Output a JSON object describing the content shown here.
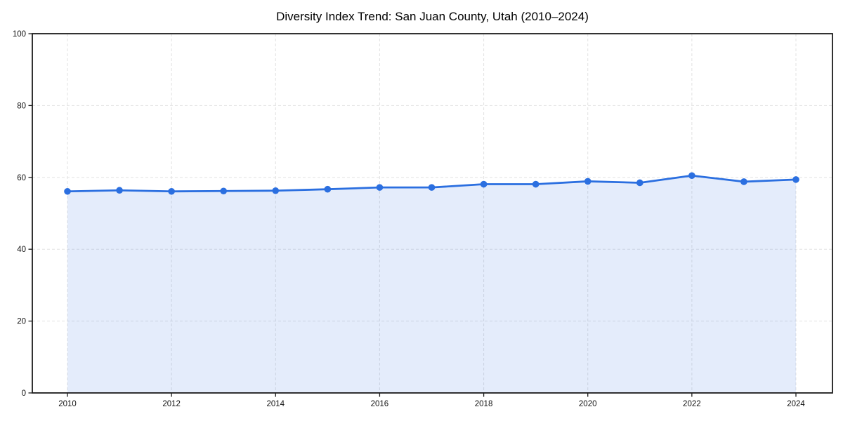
{
  "chart_data": {
    "type": "area",
    "title": "Diversity Index Trend: San Juan County, Utah (2010–2024)",
    "series_name": "Diversity Index",
    "x": [
      2010,
      2011,
      2012,
      2013,
      2014,
      2015,
      2016,
      2017,
      2018,
      2019,
      2020,
      2021,
      2022,
      2023,
      2024
    ],
    "values": [
      56.1,
      56.4,
      56.1,
      56.2,
      56.3,
      56.7,
      57.2,
      57.2,
      58.1,
      58.1,
      58.9,
      58.5,
      60.5,
      58.8,
      59.4
    ],
    "xlabel": "",
    "ylabel": "",
    "ylim": [
      0,
      100
    ],
    "yticks": [
      0,
      20,
      40,
      60,
      80,
      100
    ],
    "xticks": [
      2010,
      2012,
      2014,
      2016,
      2018,
      2020,
      2022,
      2024
    ],
    "grid": "dashed",
    "legend": "none",
    "colors": {
      "line": "#2b6fe0",
      "marker": "#2b6fe0",
      "fill": "rgba(43,111,224,0.13)",
      "grid": "#e2e2e2",
      "spine": "#1c1c1c",
      "background": "#ffffff",
      "text": "#111111"
    }
  }
}
